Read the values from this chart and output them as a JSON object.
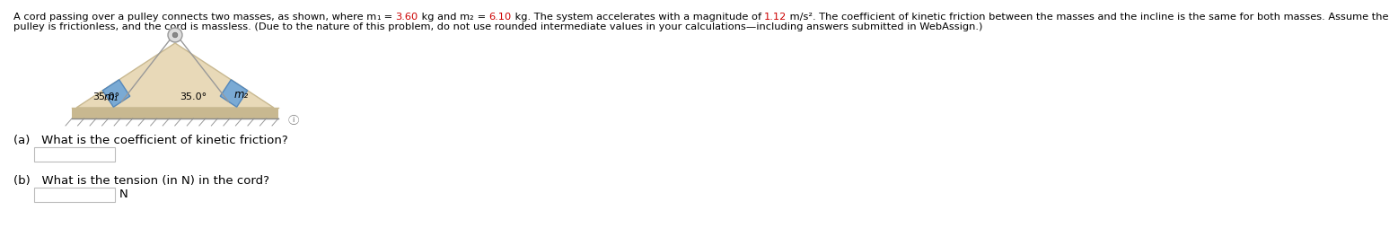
{
  "para_line1_segments": [
    [
      "A cord passing over a pulley connects two masses, as shown, where m",
      "#000000"
    ],
    [
      "₁",
      "#000000"
    ],
    [
      " = ",
      "#000000"
    ],
    [
      "3.60",
      "#cc0000"
    ],
    [
      " kg and m",
      "#000000"
    ],
    [
      "₂",
      "#000000"
    ],
    [
      " = ",
      "#000000"
    ],
    [
      "6.10",
      "#cc0000"
    ],
    [
      " kg. The system accelerates with a magnitude of ",
      "#000000"
    ],
    [
      "1.12",
      "#cc0000"
    ],
    [
      " m/s². The coefficient of kinetic friction between the masses and the incline is the same for both masses. Assume the",
      "#000000"
    ]
  ],
  "para_line2": "pulley is frictionless, and the cord is massless. (Due to the nature of this problem, do not use rounded intermediate values in your calculations—including answers submitted in WebAssign.)",
  "question_a": "(a)   What is the coefficient of kinetic friction?",
  "question_b": "(b)   What is the tension (in N) in the cord?",
  "unit_b": "N",
  "angle": "35.0°",
  "label_m1": "m₁",
  "label_m2": "m₂",
  "bg_color": "#ffffff",
  "text_color": "#000000",
  "highlight_color": "#cc0000",
  "triangle_fill": "#e8d9b8",
  "triangle_edge": "#c8b890",
  "ground_fill": "#c8b890",
  "ground_hatch": "#aaaaaa",
  "block_fill": "#7aaad4",
  "block_edge": "#5588bb",
  "cord_color": "#999999",
  "pulley_face": "#dddddd",
  "pulley_edge": "#999999",
  "font_size_para": 8.2,
  "font_size_label": 8.5,
  "font_size_question": 9.5,
  "font_size_angle": 8.0
}
